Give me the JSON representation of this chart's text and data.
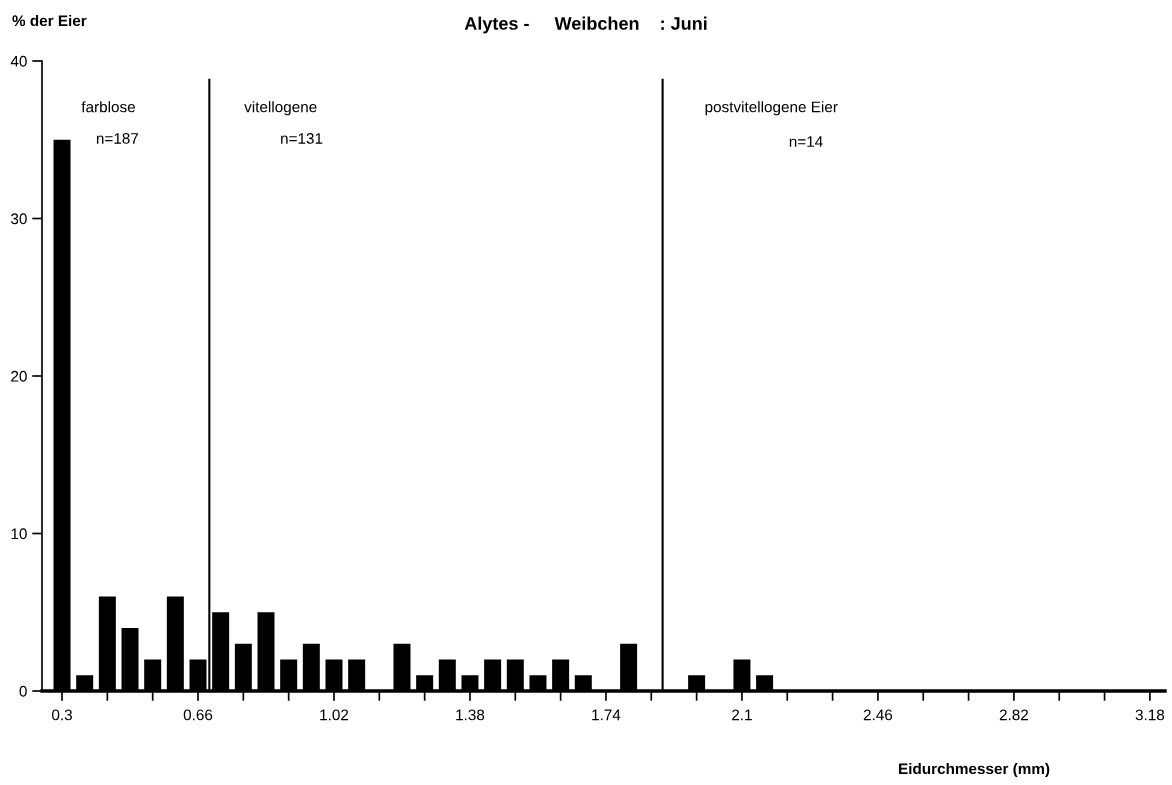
{
  "chart_data": {
    "type": "bar",
    "title": "Alytes -     Weibchen    : Juni",
    "ylabel": "% der Eier",
    "xlabel": "Eidurchmesser (mm)",
    "x": [
      0.3,
      0.36,
      0.42,
      0.48,
      0.54,
      0.6,
      0.66,
      0.72,
      0.78,
      0.84,
      0.9,
      0.96,
      1.02,
      1.08,
      1.14,
      1.2,
      1.26,
      1.32,
      1.38,
      1.44,
      1.5,
      1.56,
      1.62,
      1.68,
      1.74,
      1.8,
      1.86,
      1.92,
      1.98,
      2.04,
      2.1,
      2.16
    ],
    "values": [
      35,
      1,
      6,
      4,
      2,
      6,
      2,
      5,
      3,
      5,
      2,
      3,
      2,
      2,
      0,
      3,
      1,
      2,
      1,
      2,
      2,
      1,
      2,
      1,
      0,
      3,
      0,
      0,
      1,
      0,
      2,
      1
    ],
    "color": "#000000",
    "xlim": [
      0.247,
      3.22
    ],
    "ylim": [
      0,
      40
    ],
    "xticks": [
      0.3,
      {
        "value": 0.42,
        "label": null
      },
      {
        "value": 0.54,
        "label": null
      },
      0.66,
      {
        "value": 0.78,
        "label": null
      },
      {
        "value": 0.9,
        "label": null
      },
      1.02,
      {
        "value": 1.14,
        "label": null
      },
      {
        "value": 1.26,
        "label": null
      },
      1.38,
      {
        "value": 1.5,
        "label": null
      },
      {
        "value": 1.62,
        "label": null
      },
      1.74,
      {
        "value": 1.86,
        "label": null
      },
      {
        "value": 1.98,
        "label": null
      },
      2.1,
      {
        "value": 2.22,
        "label": null
      },
      {
        "value": 2.34,
        "label": null
      },
      2.46,
      {
        "value": 2.58,
        "label": null
      },
      {
        "value": 2.7,
        "label": null
      },
      2.82,
      {
        "value": 2.94,
        "label": null
      },
      {
        "value": 3.06,
        "label": null
      },
      3.18
    ],
    "yticks": [
      0,
      10,
      20,
      30,
      40
    ],
    "ref_lines": [
      {
        "axis": "x",
        "value": 0.69,
        "color": "#000000"
      },
      {
        "axis": "x",
        "value": 1.89,
        "color": "#000000"
      }
    ],
    "annotations": [
      "farblose",
      "n=187",
      "vitellogene",
      "n=131",
      "postvitellogene Eier",
      "n=14"
    ],
    "grid": false,
    "legend": false
  }
}
